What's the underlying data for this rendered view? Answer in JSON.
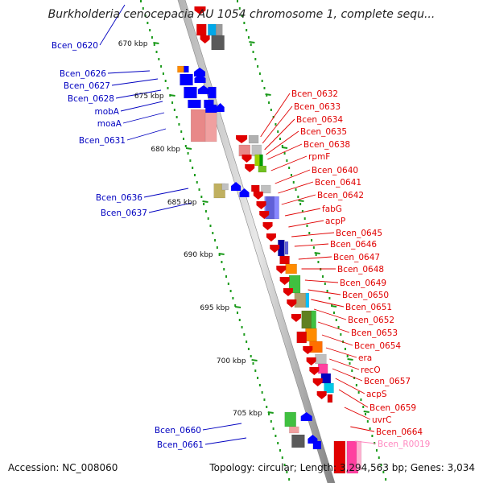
{
  "map": {
    "title": "Burkholderia cenocepacia AU 1054 chromosome 1, complete sequ...",
    "accession": "Accession: NC_008060",
    "summary": "Topology: circular; Length: 3,294,563 bp; Genes: 3,034",
    "colors": {
      "left_gene_label": "#0000c0",
      "right_gene_label": "#e00000",
      "rna_label": "#ff88c0",
      "backbone": "#888888",
      "tick": "#1a9a1a"
    }
  },
  "scale_labels": [
    "670 kbp",
    "675 kbp",
    "680 kbp",
    "685 kbp",
    "690 kbp",
    "695 kbp",
    "700 kbp",
    "705 kbp"
  ],
  "left_labels": [
    "Bcen_0620",
    "Bcen_0626",
    "Bcen_0627",
    "Bcen_0628",
    "mobA",
    "moaA",
    "Bcen_0631",
    "Bcen_0636",
    "Bcen_0637",
    "Bcen_0660",
    "Bcen_0661"
  ],
  "right_labels": [
    "Bcen_0632",
    "Bcen_0633",
    "Bcen_0634",
    "Bcen_0635",
    "Bcen_0638",
    "rpmF",
    "Bcen_0640",
    "Bcen_0641",
    "Bcen_0642",
    "fabG",
    "acpP",
    "Bcen_0645",
    "Bcen_0646",
    "Bcen_0647",
    "Bcen_0648",
    "Bcen_0649",
    "Bcen_0650",
    "Bcen_0651",
    "Bcen_0652",
    "Bcen_0653",
    "Bcen_0654",
    "era",
    "recO",
    "Bcen_0657",
    "acpS",
    "Bcen_0659",
    "uvrC",
    "Bcen_0664",
    "Bcen_R0019"
  ]
}
